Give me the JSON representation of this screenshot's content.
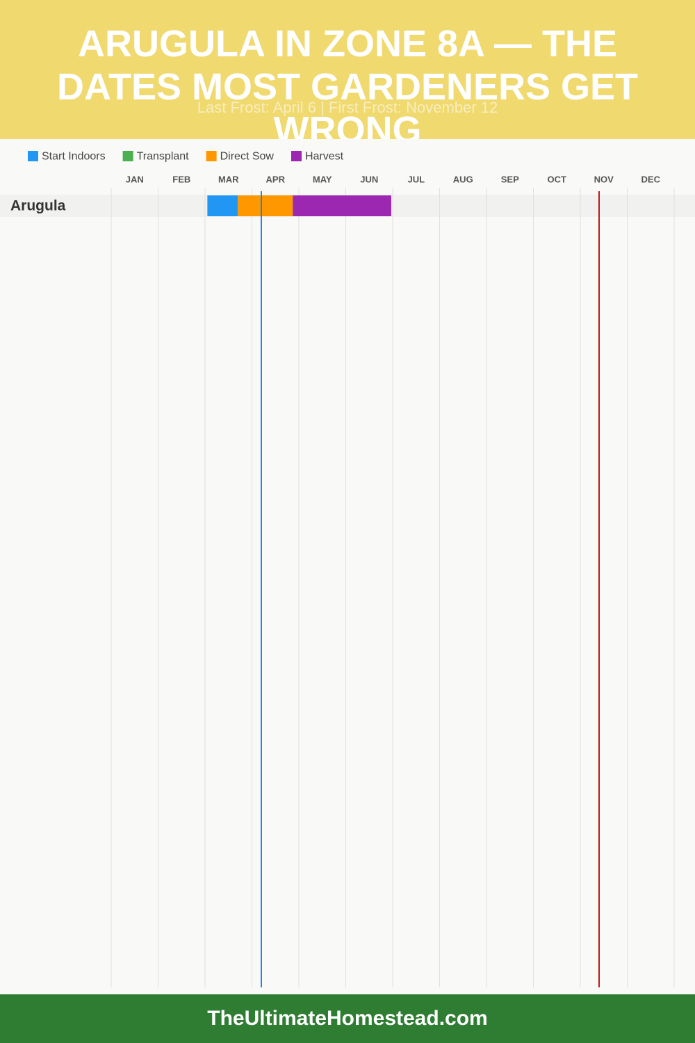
{
  "chart_data": {
    "type": "gantt",
    "title": "ARUGULA IN ZONE 8A — THE DATES MOST GARDENERS GET WRONG",
    "subtitle": "Last Frost: April 6 | First Frost: November 12",
    "categories": [
      "JAN",
      "FEB",
      "MAR",
      "APR",
      "MAY",
      "JUN",
      "JUL",
      "AUG",
      "SEP",
      "OCT",
      "NOV",
      "DEC"
    ],
    "xlim": [
      0,
      12
    ],
    "rows": [
      "Arugula"
    ],
    "series": [
      {
        "name": "Start Indoors",
        "color": "#2196f3",
        "start": [
          2.05
        ],
        "end": [
          2.7
        ]
      },
      {
        "name": "Transplant",
        "color": "#4caf50",
        "start": [
          null
        ],
        "end": [
          null
        ]
      },
      {
        "name": "Direct Sow",
        "color": "#ff9800",
        "start": [
          2.7
        ],
        "end": [
          3.87
        ]
      },
      {
        "name": "Harvest",
        "color": "#9c27b0",
        "start": [
          3.87
        ],
        "end": [
          5.97
        ]
      }
    ],
    "frost_lines": [
      {
        "x": 3.2,
        "color": "#1e88e5"
      },
      {
        "x": 10.4,
        "color": "#b71c1c"
      }
    ],
    "grid": true
  },
  "footer": "TheUltimateHomestead.com"
}
